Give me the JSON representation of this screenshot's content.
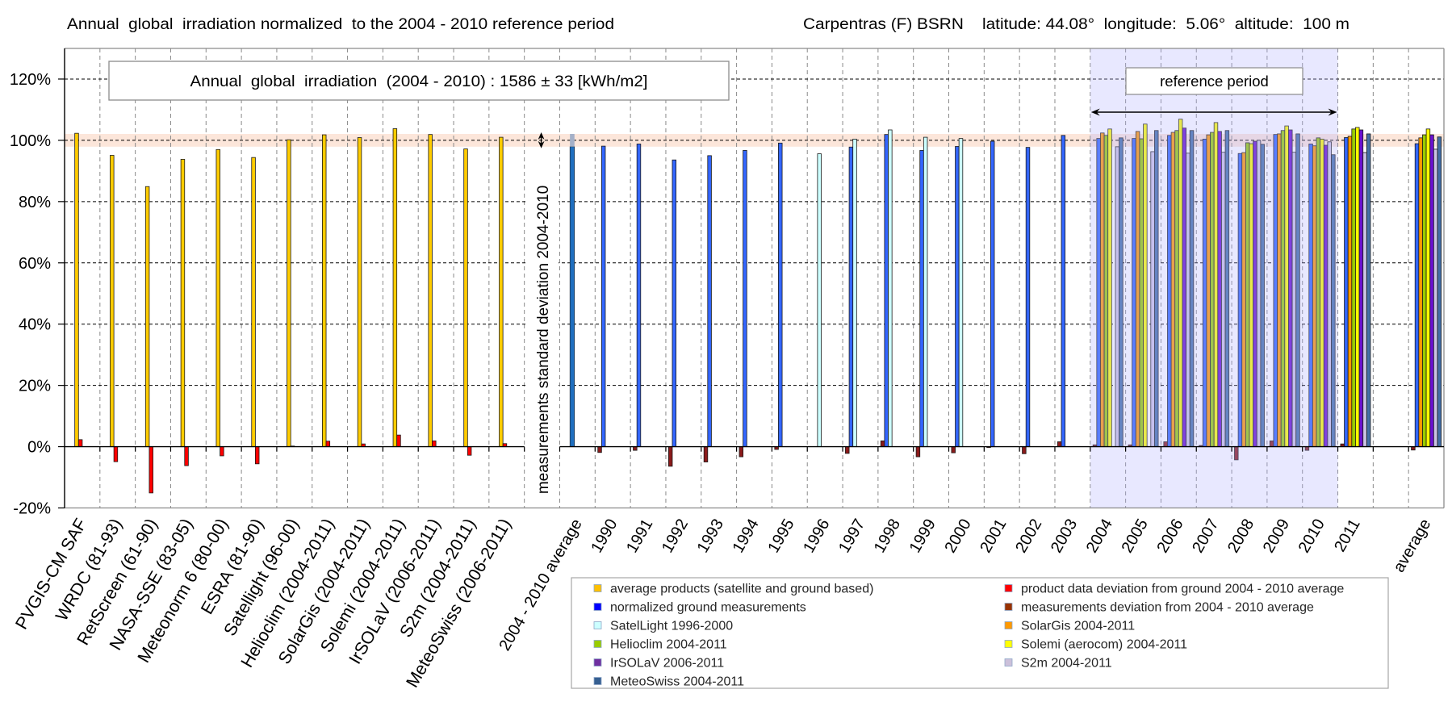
{
  "chart_data": {
    "type": "bar",
    "title": "Annual  global  irradiation normalized  to the 2004 - 2010 reference period",
    "subtitle": "Carpentras (F) BSRN    latitude: 44.08°  longitude:  5.06°  altitude:  100 m",
    "annotation": "Annual  global  irradiation  (2004 - 2010) : 1586 ± 33 [kWh/m2]",
    "reference_period_label": "reference period",
    "std_dev_label": "measurements standard deviation 2004-2010",
    "xlabel": "",
    "ylabel": "",
    "ylim": [
      -20,
      130
    ],
    "yticks": [
      -20,
      0,
      20,
      40,
      60,
      80,
      100,
      120
    ],
    "ytick_labels": [
      "-20%",
      "0%",
      "20%",
      "40%",
      "60%",
      "80%",
      "100%",
      "120%"
    ],
    "grid": true,
    "reference_band": {
      "center": 100,
      "half_width": 2.08,
      "color": "#fce6da"
    },
    "reference_period": {
      "start": "2004",
      "end": "2010",
      "color": "#b4b4ff"
    },
    "legend_position": "bottom",
    "categories": [
      "PVGIS-CM SAF",
      "WRDC (81-93)",
      "RetScreen (61-90)",
      "NASA-SSE (83-05)",
      "Meteonorm 6 (80-00)",
      "ESRA (81-90)",
      "Satellight (96-00)",
      "Helioclim (2004-2011)",
      "SolarGis (2004-2011)",
      "Solemi (2004-2011)",
      "IrSOLaV (2006-2011)",
      "S2m (2004-2011)",
      "MeteoSwiss (2006-2011)",
      "",
      "2004 - 2010  average",
      "1990",
      "1991",
      "1992",
      "1993",
      "1994",
      "1995",
      "1996",
      "1997",
      "1998",
      "1999",
      "2000",
      "2001",
      "2002",
      "2003",
      "2004",
      "2005",
      "2006",
      "2007",
      "2008",
      "2009",
      "2010",
      "2011",
      "",
      "average"
    ],
    "series": [
      {
        "key": "avg_products",
        "name": "average products (satellite and ground based)",
        "color": "#ffcc00",
        "values": [
          102.3,
          95.1,
          84.9,
          93.8,
          97.0,
          94.4,
          100.2,
          101.8,
          100.9,
          103.8,
          101.9,
          97.2,
          101.0,
          null,
          null,
          null,
          null,
          null,
          null,
          null,
          null,
          null,
          null,
          null,
          null,
          null,
          null,
          null,
          null,
          null,
          null,
          null,
          null,
          null,
          null,
          null,
          null,
          null,
          null
        ]
      },
      {
        "key": "product_dev",
        "name": "product data deviation from ground 2004 - 2010 average",
        "color": "#ff0000",
        "values": [
          2.3,
          -4.9,
          -15.1,
          -6.2,
          -3.0,
          -5.6,
          0.2,
          1.8,
          0.9,
          3.8,
          1.9,
          -2.8,
          1.0,
          null,
          null,
          null,
          null,
          null,
          null,
          null,
          null,
          null,
          null,
          null,
          null,
          null,
          null,
          null,
          null,
          null,
          null,
          null,
          null,
          null,
          null,
          null,
          null,
          null,
          null
        ]
      },
      {
        "key": "ref_avg",
        "name": "2004 - 2010 average",
        "color": "#1f6fbf",
        "std_color": "#a4b0c8",
        "values": [
          null,
          null,
          null,
          null,
          null,
          null,
          null,
          null,
          null,
          null,
          null,
          null,
          null,
          null,
          100,
          null,
          null,
          null,
          null,
          null,
          null,
          null,
          null,
          null,
          null,
          null,
          null,
          null,
          null,
          null,
          null,
          null,
          null,
          null,
          null,
          null,
          null,
          null,
          null
        ]
      },
      {
        "key": "meas_dev",
        "name": "measurements deviation from 2004 - 2010 average",
        "color": "#8b1a1a",
        "values": [
          null,
          null,
          null,
          null,
          null,
          null,
          null,
          null,
          null,
          null,
          null,
          null,
          null,
          null,
          null,
          -1.9,
          -1.2,
          -6.4,
          -5.0,
          -3.3,
          -0.9,
          null,
          -2.2,
          1.9,
          -3.3,
          -2.0,
          -0.3,
          -2.3,
          1.6,
          0.6,
          0.6,
          1.6,
          0.4,
          -4.3,
          1.9,
          -1.2,
          0.9,
          null,
          -1.1
        ]
      },
      {
        "key": "ground",
        "name": "normalized ground measurements",
        "color": "#3366ff",
        "values": [
          null,
          null,
          null,
          null,
          null,
          null,
          null,
          null,
          null,
          null,
          null,
          null,
          null,
          null,
          null,
          98.1,
          98.8,
          93.6,
          95.0,
          96.7,
          99.1,
          null,
          97.8,
          101.9,
          96.7,
          98.0,
          99.7,
          97.7,
          101.6,
          100.6,
          100.6,
          101.6,
          100.4,
          95.7,
          101.9,
          98.8,
          100.9,
          null,
          98.9
        ]
      },
      {
        "key": "satellight",
        "name": "SatelLight 1996-2000",
        "color": "#ccffff",
        "values": [
          null,
          null,
          null,
          null,
          null,
          null,
          null,
          null,
          null,
          null,
          null,
          null,
          null,
          null,
          null,
          null,
          null,
          null,
          null,
          null,
          null,
          95.6,
          100.4,
          103.4,
          101.0,
          100.6,
          null,
          null,
          null,
          null,
          null,
          null,
          null,
          null,
          null,
          null,
          null,
          null,
          null
        ]
      },
      {
        "key": "solargis",
        "name": "SolarGis 2004-2011",
        "color": "#ff9900",
        "values": [
          null,
          null,
          null,
          null,
          null,
          null,
          null,
          null,
          null,
          null,
          null,
          null,
          null,
          null,
          null,
          null,
          null,
          null,
          null,
          null,
          null,
          null,
          null,
          null,
          null,
          null,
          null,
          null,
          null,
          102.4,
          102.9,
          102.6,
          101.8,
          96.0,
          102.1,
          98.2,
          101.3,
          null,
          100.8
        ]
      },
      {
        "key": "helioclim",
        "name": "Helioclim 2004-2011",
        "color": "#99cc00",
        "values": [
          null,
          null,
          null,
          null,
          null,
          null,
          null,
          null,
          null,
          null,
          null,
          null,
          null,
          null,
          null,
          null,
          null,
          null,
          null,
          null,
          null,
          null,
          null,
          null,
          null,
          null,
          null,
          null,
          null,
          101.6,
          100.5,
          103.2,
          102.6,
          99.2,
          103.2,
          100.8,
          103.7,
          null,
          101.8
        ]
      },
      {
        "key": "solemi",
        "name": "Solemi (aerocom) 2004-2011",
        "color": "#ffff00",
        "values": [
          null,
          null,
          null,
          null,
          null,
          null,
          null,
          null,
          null,
          null,
          null,
          null,
          null,
          null,
          null,
          null,
          null,
          null,
          null,
          null,
          null,
          null,
          null,
          null,
          null,
          null,
          null,
          null,
          null,
          103.7,
          105.3,
          106.9,
          105.8,
          98.9,
          104.7,
          100.4,
          104.2,
          null,
          103.7
        ]
      },
      {
        "key": "irsolav",
        "name": "IrSOLaV 2006-2011",
        "color": "#6a10d0",
        "values": [
          null,
          null,
          null,
          null,
          null,
          null,
          null,
          null,
          null,
          null,
          null,
          null,
          null,
          null,
          null,
          null,
          null,
          null,
          null,
          null,
          null,
          null,
          null,
          null,
          null,
          null,
          null,
          null,
          null,
          null,
          null,
          104.0,
          102.9,
          99.7,
          103.4,
          98.4,
          103.4,
          null,
          101.8
        ]
      },
      {
        "key": "s2m",
        "name": "S2m 2004-2011",
        "color": "#ccc4e4",
        "values": [
          null,
          null,
          null,
          null,
          null,
          null,
          null,
          null,
          null,
          null,
          null,
          null,
          null,
          null,
          null,
          null,
          null,
          null,
          null,
          null,
          null,
          null,
          null,
          null,
          null,
          null,
          null,
          null,
          null,
          97.9,
          96.3,
          95.8,
          96.1,
          100.0,
          96.1,
          99.5,
          96.0,
          null,
          97.1
        ]
      },
      {
        "key": "meteoswiss",
        "name": "MeteoSwiss 2004-2011",
        "color": "#4470a8",
        "values": [
          null,
          null,
          null,
          null,
          null,
          null,
          null,
          null,
          null,
          null,
          null,
          null,
          null,
          null,
          null,
          null,
          null,
          null,
          null,
          null,
          null,
          null,
          null,
          null,
          null,
          null,
          null,
          null,
          null,
          100.8,
          103.2,
          103.2,
          103.2,
          98.7,
          102.1,
          95.3,
          102.1,
          null,
          101.1
        ]
      }
    ],
    "legend": [
      {
        "label": "average products (satellite and ground based)",
        "color": "#ffc000"
      },
      {
        "label": "product data deviation from ground 2004 - 2010 average",
        "color": "#ff0000"
      },
      {
        "label": "normalized ground measurements",
        "color": "#0000ff"
      },
      {
        "label": "measurements deviation from 2004 - 2010 average",
        "color": "#993300"
      },
      {
        "label": "SatelLight 1996-2000",
        "color": "#ccffff"
      },
      {
        "label": "SolarGis 2004-2011",
        "color": "#ff9900"
      },
      {
        "label": "Helioclim 2004-2011",
        "color": "#99cc00"
      },
      {
        "label": "Solemi (aerocom) 2004-2011",
        "color": "#ffff00"
      },
      {
        "label": "IrSOLaV 2006-2011",
        "color": "#7030a0"
      },
      {
        "label": "S2m 2004-2011",
        "color": "#ccc0da"
      },
      {
        "label": "MeteoSwiss 2004-2011",
        "color": "#376092"
      }
    ]
  }
}
